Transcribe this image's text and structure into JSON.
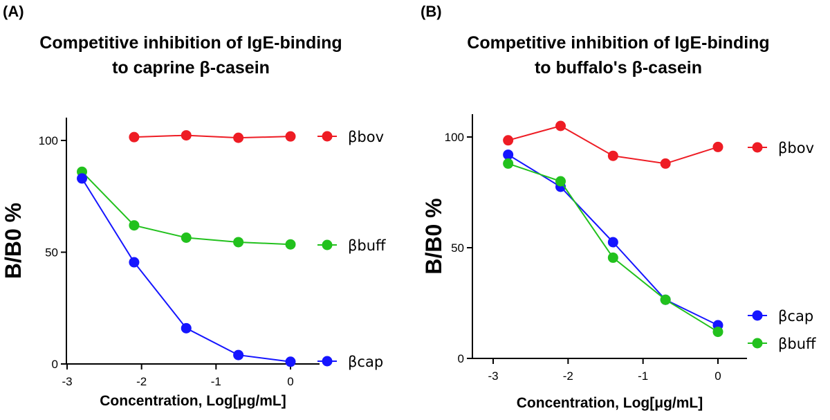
{
  "chart_data": [
    {
      "type": "line",
      "panel_label": "(A)",
      "title_lines": [
        "Competitive inhibition of IgE-binding",
        "to caprine β-casein"
      ],
      "xlabel": "Concentration, Log[μg/mL]",
      "ylabel": "B/B0 %",
      "xlim": [
        -3,
        0.4
      ],
      "ylim": [
        0,
        110
      ],
      "xticks": [
        -3,
        -2,
        -1,
        0
      ],
      "yticks": [
        0,
        50,
        100
      ],
      "grid": false,
      "legend_placement": "right, at series ends",
      "series": [
        {
          "name": "βbov",
          "color": "#ee1c24",
          "x": [
            -2.1,
            -1.4,
            -0.7,
            0
          ],
          "y": [
            101.5,
            102.3,
            101.2,
            101.8
          ]
        },
        {
          "name": "βbuff",
          "color": "#22c11d",
          "x": [
            -2.8,
            -2.1,
            -1.4,
            -0.7,
            0
          ],
          "y": [
            86,
            62,
            56.5,
            54.5,
            53.5
          ]
        },
        {
          "name": "βcap",
          "color": "#1515ff",
          "x": [
            -2.8,
            -2.1,
            -1.4,
            -0.7,
            0
          ],
          "y": [
            83,
            45.5,
            16,
            4,
            1
          ]
        }
      ]
    },
    {
      "type": "line",
      "panel_label": "(B)",
      "title_lines": [
        "Competitive inhibition of IgE-binding",
        "to buffalo's β-casein"
      ],
      "xlabel": "Concentration, Log[μg/mL]",
      "ylabel": "B/B0 %",
      "xlim": [
        -3,
        0.4
      ],
      "ylim": [
        0,
        110
      ],
      "xticks": [
        -3,
        -2,
        -1,
        0
      ],
      "yticks": [
        0,
        50,
        100
      ],
      "grid": false,
      "legend_placement": "right",
      "series": [
        {
          "name": "βbov",
          "color": "#ee1c24",
          "x": [
            -2.8,
            -2.1,
            -1.4,
            -0.7,
            0
          ],
          "y": [
            98.5,
            105,
            91.5,
            88,
            95.5
          ]
        },
        {
          "name": "βcap",
          "color": "#1515ff",
          "x": [
            -2.8,
            -2.1,
            -1.4,
            -0.7,
            0
          ],
          "y": [
            92,
            77.5,
            52.5,
            26.5,
            15
          ]
        },
        {
          "name": "βbuff",
          "color": "#22c11d",
          "x": [
            -2.8,
            -2.1,
            -1.4,
            -0.7,
            0
          ],
          "y": [
            88,
            80,
            45.5,
            26.5,
            12
          ]
        }
      ]
    }
  ]
}
